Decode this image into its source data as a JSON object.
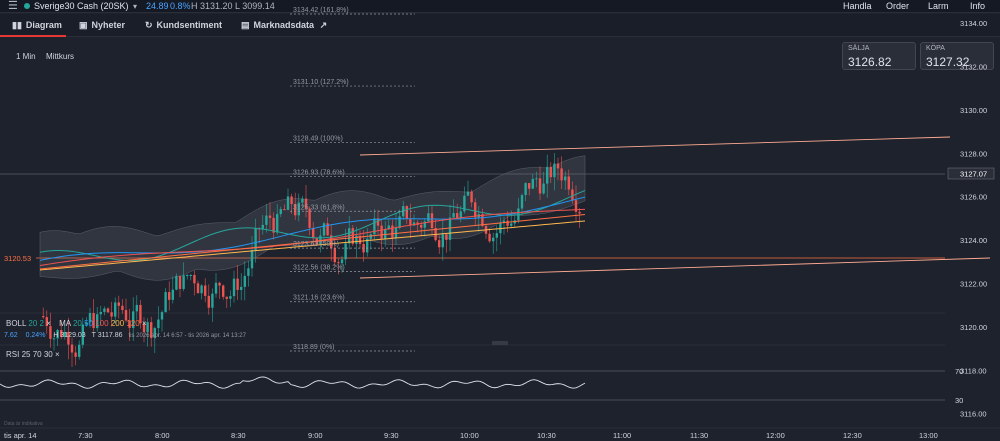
{
  "topbar": {
    "symbol": "Sverige30 Cash (20SK)",
    "price": "24.89",
    "change_pct": "0.8%",
    "hl": "H 3131.20  L 3099.14",
    "menu": [
      "Handla",
      "Order",
      "Larm",
      "Info"
    ]
  },
  "tabs": [
    {
      "label": "Diagram",
      "icon": "chart-icon"
    },
    {
      "label": "Nyheter",
      "icon": "news-icon"
    },
    {
      "label": "Kundsentiment",
      "icon": "refresh-icon"
    },
    {
      "label": "Marknadsdata",
      "icon": "book-icon",
      "external": "↗"
    }
  ],
  "controls": {
    "interval": "1 Min",
    "mode": "Mittkurs"
  },
  "quotes": {
    "sell_label": "SÄLJA",
    "sell_value": "3126.82",
    "buy_label": "KÖPA",
    "buy_value": "3127.32"
  },
  "price_axis": [
    "3134.00",
    "3132.00",
    "3130.00",
    "3128.00",
    "3126.00",
    "3124.00",
    "3122.00",
    "3120.00",
    "3118.00",
    "3116.00"
  ],
  "current_price_label": "3127.07",
  "left_level_label": "3120.53",
  "fib_levels": [
    {
      "label": "3134.42 (161.8%)",
      "price": 3134.42
    },
    {
      "label": "3131.10 (127.2%)",
      "price": 3131.1
    },
    {
      "label": "3128.49 (100%)",
      "price": 3128.49
    },
    {
      "label": "3126.93 (78.6%)",
      "price": 3126.93
    },
    {
      "label": "3125.33 (61.8%)",
      "price": 3125.33
    },
    {
      "label": "3123.63 (50%)",
      "price": 3123.63
    },
    {
      "label": "3122.56 (38.2%)",
      "price": 3122.56
    },
    {
      "label": "3121.16 (23.6%)",
      "price": 3121.16
    },
    {
      "label": "3118.89 (0%)",
      "price": 3118.89
    }
  ],
  "legend": {
    "boll": "BOLL",
    "boll_p1": "20",
    "boll_p2": "2",
    "ma": "MA",
    "ma_p": [
      "20",
      "50",
      "100",
      "200",
      "120"
    ],
    "close_x": "×",
    "row2_a": "7.62",
    "row2_b": "0.24%",
    "row2_h": "H 3129.03",
    "row2_l": "T 3117.86",
    "row2_range": "tis 2026 apr. 14 6:57 - tis 2026 apr. 14 13:27"
  },
  "rsi": {
    "label": "RSI",
    "params": [
      "25",
      "70",
      "30"
    ],
    "close_x": "×",
    "levels": [
      "70",
      "30"
    ]
  },
  "time_axis": [
    "tis apr. 14",
    "7:30",
    "8:00",
    "8:30",
    "9:00",
    "9:30",
    "10:00",
    "10:30",
    "11:00",
    "11:30",
    "12:00",
    "12:30",
    "13:00"
  ],
  "footer_note": "Data är indikativa",
  "colors": {
    "up": "#26a69a",
    "down": "#ef5350",
    "bg": "#1e222d",
    "accent": "#e53935"
  }
}
